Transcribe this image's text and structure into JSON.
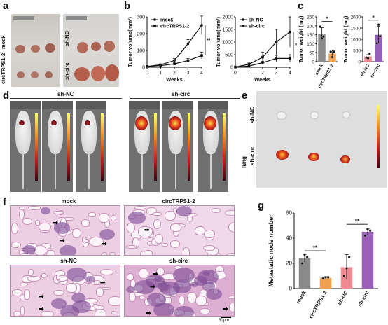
{
  "panels": {
    "a": {
      "letter": "a",
      "group_top": "circTRPS1-2",
      "group_top2": "mock",
      "group_right_top": "sh-NC",
      "group_right_bottom": "sh-circ"
    },
    "b": {
      "letter": "b"
    },
    "c": {
      "letter": "c"
    },
    "d": {
      "letter": "d",
      "label_left": "sh-NC",
      "label_right": "sh-circ"
    },
    "e": {
      "letter": "e",
      "tissue": "lung",
      "row_top": "sh-NC",
      "row_bottom": "sh-circ"
    },
    "f": {
      "letter": "f",
      "titles": [
        "mock",
        "circTRPS1-2",
        "sh-NC",
        "sh-circ"
      ],
      "scale_bar": "50μm"
    },
    "g": {
      "letter": "g"
    }
  },
  "chart_data": [
    {
      "type": "line",
      "panel": "b-left",
      "ylabel": "Tumor volume(mm³)",
      "xlabel": "Weeks",
      "x": [
        0,
        1,
        2,
        3,
        4
      ],
      "ylim": [
        0,
        300
      ],
      "yticks": [
        0,
        100,
        200,
        300
      ],
      "xticks": [
        0,
        1,
        2,
        3,
        4
      ],
      "series": [
        {
          "name": "mock",
          "values": [
            5,
            15,
            40,
            140,
            250
          ],
          "errors": [
            2,
            5,
            12,
            25,
            55
          ],
          "color": "#111111"
        },
        {
          "name": "circTRPS1-2",
          "values": [
            5,
            10,
            20,
            40,
            70
          ],
          "errors": [
            2,
            3,
            6,
            12,
            20
          ],
          "color": "#111111"
        }
      ],
      "annotation": "**"
    },
    {
      "type": "line",
      "panel": "b-right",
      "ylabel": "Tumor volume(mm³)",
      "xlabel": "Weeks",
      "x": [
        0,
        1,
        2,
        3,
        4
      ],
      "ylim": [
        0,
        2000
      ],
      "yticks": [
        0,
        500,
        1000,
        1500,
        2000
      ],
      "xticks": [
        0,
        1,
        2,
        3,
        4
      ],
      "series": [
        {
          "name": "sh-NC",
          "values": [
            10,
            50,
            180,
            350,
            350
          ],
          "errors": [
            5,
            20,
            60,
            120,
            150
          ],
          "color": "#111111"
        },
        {
          "name": "sh-circ",
          "values": [
            10,
            120,
            400,
            1000,
            1400
          ],
          "errors": [
            5,
            50,
            200,
            500,
            600
          ],
          "color": "#111111"
        }
      ],
      "annotation": "*"
    },
    {
      "type": "bar",
      "panel": "c-left",
      "ylabel": "Tumor weight (mg)",
      "categories": [
        "mock",
        "circTRPS1-2"
      ],
      "values": [
        155,
        45
      ],
      "errors": [
        35,
        20
      ],
      "colors": [
        "#8c8c8c",
        "#f0a050"
      ],
      "points": [
        [
          195,
          130,
          140
        ],
        [
          55,
          25,
          55
        ]
      ],
      "ylim": [
        0,
        250
      ],
      "yticks": [
        0,
        50,
        100,
        150,
        200,
        250
      ],
      "annotation": "*"
    },
    {
      "type": "bar",
      "panel": "c-right",
      "ylabel": "Tumor weight (mg)",
      "categories": [
        "sh-NC",
        "sh-circ"
      ],
      "values": [
        230,
        1200
      ],
      "errors": [
        80,
        380
      ],
      "colors": [
        "#e8828a",
        "#9560b8"
      ],
      "points": [
        [
          180,
          160,
          350
        ],
        [
          820,
          1650,
          1130
        ]
      ],
      "ylim": [
        0,
        2000
      ],
      "yticks": [
        0,
        500,
        1000,
        1500,
        2000
      ],
      "annotation": "*"
    },
    {
      "type": "bar",
      "panel": "g",
      "ylabel": "Metastatic node number",
      "categories": [
        "mock",
        "circTRPS1-2",
        "sh-NC",
        "sh-circ"
      ],
      "values": [
        24,
        8.5,
        17,
        45
      ],
      "errors": [
        3,
        1,
        10,
        2.5
      ],
      "colors": [
        "#8a8a8a",
        "#f0a050",
        "#f08a92",
        "#9a60b8"
      ],
      "points": [
        [
          20,
          27,
          25
        ],
        [
          8,
          9,
          9
        ],
        [
          10,
          16,
          25
        ],
        [
          42,
          47,
          46
        ]
      ],
      "ylim": [
        0,
        60
      ],
      "yticks": [
        0,
        20,
        40,
        60
      ],
      "annotations": [
        {
          "between": [
            "mock",
            "circTRPS1-2"
          ],
          "text": "**"
        },
        {
          "between": [
            "sh-NC",
            "sh-circ"
          ],
          "text": "**"
        }
      ]
    }
  ]
}
